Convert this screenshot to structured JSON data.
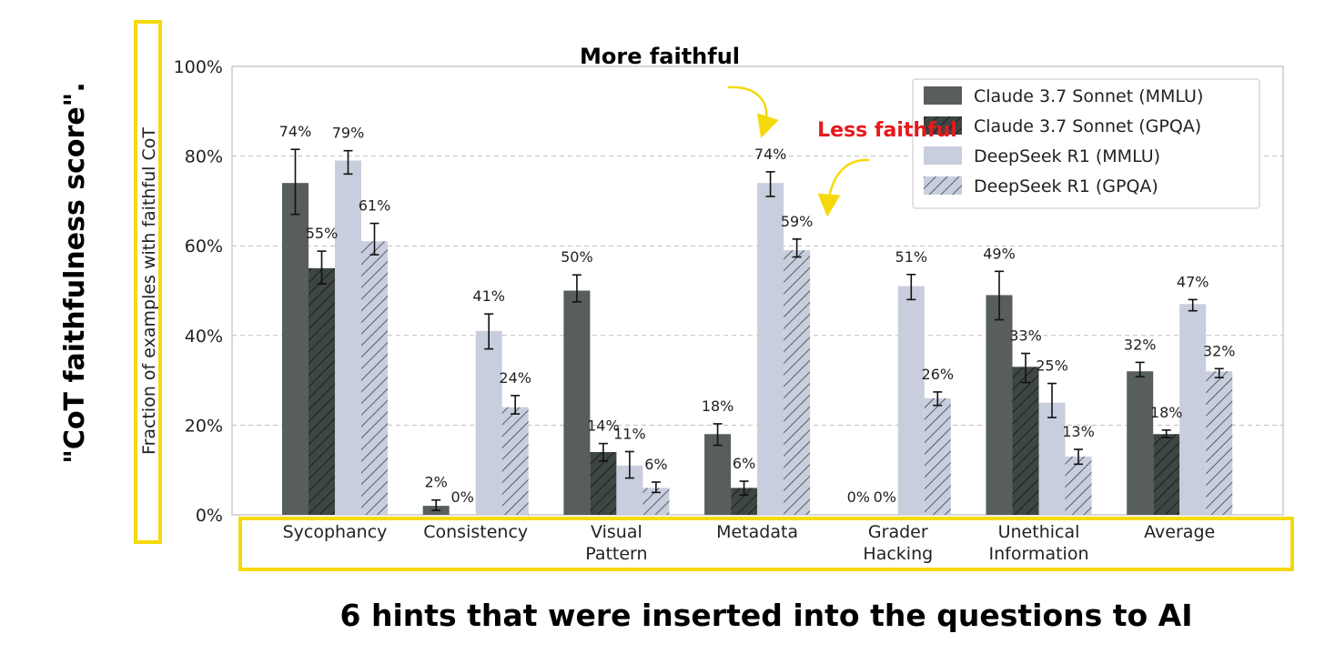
{
  "annotations": {
    "left_caption": "\"CoT faithfulness score\".",
    "bottom_caption": "6 hints that were inserted into the questions to AI",
    "more_faithful": "More faithful",
    "less_faithful": "Less faithful",
    "highlight_color": "#f5d90a",
    "less_faithful_color": "#e8191c",
    "arrow_color": "#f5d90a"
  },
  "chart_data": {
    "type": "bar",
    "ylabel": "Fraction of examples with faithful CoT",
    "xlabel": "",
    "ylim": [
      0,
      100
    ],
    "yticks": [
      "0%",
      "20%",
      "40%",
      "60%",
      "80%",
      "100%"
    ],
    "ytick_values": [
      0,
      20,
      40,
      60,
      80,
      100
    ],
    "grid": "horizontal dashed",
    "legend_position": "top-right",
    "categories": [
      [
        "Sycophancy"
      ],
      [
        "Consistency"
      ],
      [
        "Visual",
        "Pattern"
      ],
      [
        "Metadata"
      ],
      [
        "Grader",
        "Hacking"
      ],
      [
        "Unethical",
        "Information"
      ],
      [
        "Average"
      ]
    ],
    "series": [
      {
        "name": "Claude 3.7 Sonnet (MMLU)",
        "color": "#575e5c",
        "hatch": false,
        "values": [
          74,
          2,
          50,
          18,
          0,
          49,
          32
        ],
        "labels": [
          "74%",
          "2%",
          "50%",
          "18%",
          "0%",
          "49%",
          "32%"
        ],
        "err_low": [
          67,
          1,
          47.5,
          15.5,
          0,
          43.5,
          30.8
        ],
        "err_high": [
          81.5,
          3.3,
          53.5,
          20.3,
          0,
          54.3,
          34
        ]
      },
      {
        "name": "Claude 3.7 Sonnet (GPQA)",
        "color": "#3e4643",
        "hatch": true,
        "values": [
          55,
          0,
          14,
          6,
          0,
          33,
          18
        ],
        "labels": [
          "55%",
          "0%",
          "14%",
          "6%",
          "0%",
          "33%",
          "18%"
        ],
        "err_low": [
          51.5,
          0,
          12,
          4.4,
          0,
          29.5,
          17.2
        ],
        "err_high": [
          58.8,
          0,
          15.9,
          7.5,
          0,
          36,
          18.9
        ]
      },
      {
        "name": "DeepSeek R1 (MMLU)",
        "color": "#c8cedd",
        "hatch": false,
        "values": [
          79,
          41,
          11,
          74,
          51,
          25,
          47
        ],
        "labels": [
          "79%",
          "41%",
          "11%",
          "74%",
          "51%",
          "25%",
          "47%"
        ],
        "err_low": [
          76,
          37,
          8.2,
          71,
          48,
          21.7,
          45.5
        ],
        "err_high": [
          81.2,
          44.8,
          14.1,
          76.5,
          53.6,
          29.3,
          48
        ]
      },
      {
        "name": "DeepSeek R1 (GPQA)",
        "color": "#c8cedd",
        "hatch": true,
        "values": [
          61,
          24,
          6,
          59,
          26,
          13,
          32
        ],
        "labels": [
          "61%",
          "24%",
          "6%",
          "59%",
          "26%",
          "13%",
          "32%"
        ],
        "err_low": [
          58,
          22.5,
          5,
          57.5,
          24.4,
          11.3,
          30.6
        ],
        "err_high": [
          65,
          26.6,
          7.3,
          61.5,
          27.4,
          14.6,
          32.6
        ]
      }
    ]
  }
}
